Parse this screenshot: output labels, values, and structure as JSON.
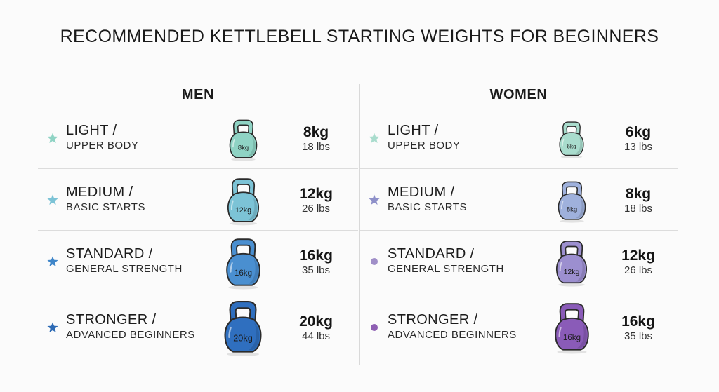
{
  "title": "RECOMMENDED KETTLEBELL STARTING WEIGHTS FOR BEGINNERS",
  "columns": [
    {
      "header": "MEN",
      "rows": [
        {
          "level": "LIGHT /",
          "desc": "UPPER BODY",
          "kg": "8kg",
          "lbs": "18 lbs",
          "bell_label": "8kg",
          "color": "#8fd3c4",
          "marker": "star",
          "marker_color": "#8fd3c4"
        },
        {
          "level": "MEDIUM /",
          "desc": "BASIC STARTS",
          "kg": "12kg",
          "lbs": "26 lbs",
          "bell_label": "12kg",
          "color": "#7cc3d6",
          "marker": "star",
          "marker_color": "#7cc3d6"
        },
        {
          "level": "STANDARD /",
          "desc": "GENERAL STRENGTH",
          "kg": "16kg",
          "lbs": "35 lbs",
          "bell_label": "16kg",
          "color": "#4a8fd0",
          "marker": "star",
          "marker_color": "#3f86c9"
        },
        {
          "level": "STRONGER /",
          "desc": "ADVANCED BEGINNERS",
          "kg": "20kg",
          "lbs": "44 lbs",
          "bell_label": "20kg",
          "color": "#2f6fbf",
          "marker": "star",
          "marker_color": "#2e6bb5"
        }
      ]
    },
    {
      "header": "WOMEN",
      "rows": [
        {
          "level": "LIGHT /",
          "desc": "UPPER BODY",
          "kg": "6kg",
          "lbs": "13 lbs",
          "bell_label": "6kg",
          "color": "#a9dccd",
          "marker": "star",
          "marker_color": "#a9dccd"
        },
        {
          "level": "MEDIUM /",
          "desc": "BASIC STARTS",
          "kg": "8kg",
          "lbs": "18 lbs",
          "bell_label": "8kg",
          "color": "#9fb1dc",
          "marker": "star",
          "marker_color": "#8e90c9"
        },
        {
          "level": "STANDARD /",
          "desc": "GENERAL STRENGTH",
          "kg": "12kg",
          "lbs": "26 lbs",
          "bell_label": "12kg",
          "color": "#9c8fcf",
          "marker": "dot",
          "marker_color": "#a08fc8"
        },
        {
          "level": "STRONGER /",
          "desc": "ADVANCED BEGINNERS",
          "kg": "16kg",
          "lbs": "35 lbs",
          "bell_label": "16kg",
          "color": "#8a5bb8",
          "marker": "dot",
          "marker_color": "#8e5fb3"
        }
      ]
    }
  ]
}
